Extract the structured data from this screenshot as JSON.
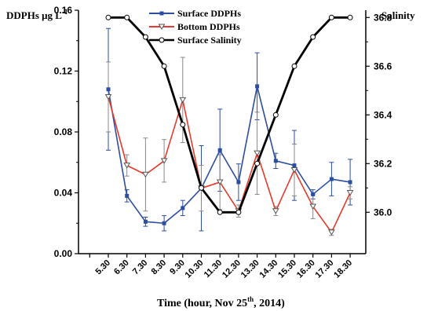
{
  "chart_data": {
    "type": "line",
    "categories": [
      "5.30",
      "6.30",
      "7.30",
      "8.30",
      "9.30",
      "10.30",
      "11.30",
      "12.30",
      "13.30",
      "14.30",
      "15.30",
      "16.30",
      "17.30",
      "18.30"
    ],
    "y_left": {
      "label_main": "DDPHs μg L",
      "label_sup": "-1",
      "range": [
        0,
        0.16
      ],
      "ticks": [
        "0.00",
        "0.04",
        "0.08",
        "0.12",
        "0.16"
      ]
    },
    "y_right": {
      "label": "Salinity",
      "range": [
        35.83,
        36.83
      ],
      "ticks": [
        "36.0",
        "36.2",
        "36.4",
        "36.6",
        "36.8"
      ]
    },
    "x_axis": {
      "label_main": "Time (hour, Nov 25",
      "label_sup": "th",
      "label_end": ", 2014)"
    },
    "legend_position": "top-center",
    "series": [
      {
        "name": "Surface DDPHs",
        "axis": "left",
        "color": "#2b4ea0",
        "marker": "square",
        "values": [
          0.108,
          0.038,
          0.021,
          0.02,
          0.03,
          0.043,
          0.068,
          0.047,
          0.11,
          0.061,
          0.058,
          0.039,
          0.049,
          0.047
        ],
        "err": [
          0.04,
          0.004,
          0.003,
          0.005,
          0.005,
          0.028,
          0.027,
          0.012,
          0.022,
          0.005,
          0.023,
          0.003,
          0.011,
          0.015
        ]
      },
      {
        "name": "Bottom DDPHs",
        "axis": "left",
        "color": "#e53a2c",
        "marker": "triangle-down",
        "values": [
          0.103,
          0.058,
          0.052,
          0.061,
          0.101,
          0.043,
          0.047,
          0.028,
          0.066,
          0.028,
          0.055,
          0.031,
          0.014,
          0.04
        ],
        "err": [
          0.023,
          0.007,
          0.024,
          0.014,
          0.028,
          0.015,
          0.018,
          0.004,
          0.027,
          0.003,
          0.017,
          0.008,
          0.002,
          0.004
        ]
      },
      {
        "name": "Surface Salinity",
        "axis": "right",
        "color": "#000000",
        "marker": "circle-open",
        "values": [
          36.8,
          36.8,
          36.72,
          36.6,
          36.36,
          36.1,
          36.0,
          36.0,
          36.2,
          36.4,
          36.6,
          36.72,
          36.8,
          36.8
        ]
      }
    ]
  }
}
